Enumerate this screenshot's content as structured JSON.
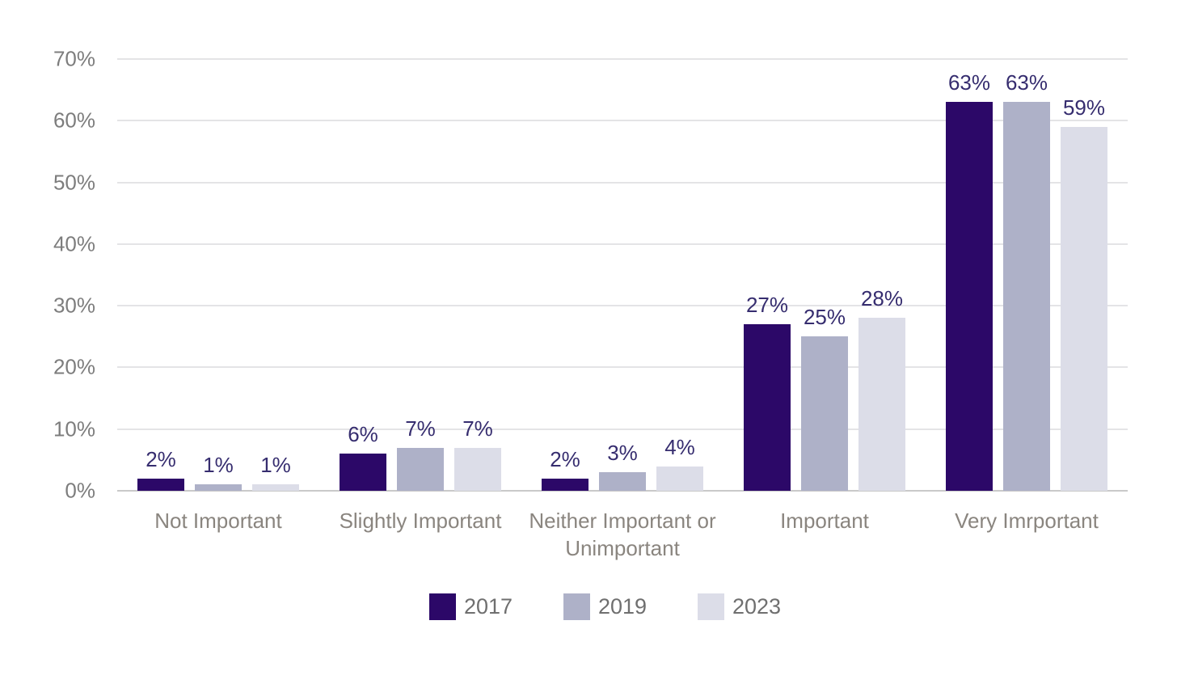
{
  "chart_data": {
    "type": "bar",
    "title": "",
    "xlabel": "",
    "ylabel": "",
    "categories": [
      "Not Important",
      "Slightly Important",
      "Neither Important or Unimportant",
      "Important",
      "Very Imrportant"
    ],
    "series": [
      {
        "name": "2017",
        "color": "#2c0868",
        "values": [
          2,
          6,
          2,
          27,
          63
        ]
      },
      {
        "name": "2019",
        "color": "#aeb1c8",
        "values": [
          1,
          7,
          3,
          25,
          63
        ]
      },
      {
        "name": "2023",
        "color": "#dcdde8",
        "values": [
          1,
          7,
          4,
          28,
          59
        ]
      }
    ],
    "value_labels": [
      [
        "2%",
        "6%",
        "2%",
        "27%",
        "63%"
      ],
      [
        "1%",
        "7%",
        "3%",
        "25%",
        "63%"
      ],
      [
        "1%",
        "7%",
        "4%",
        "28%",
        "59%"
      ]
    ],
    "yticks": [
      "0%",
      "10%",
      "20%",
      "30%",
      "40%",
      "50%",
      "60%",
      "70%"
    ],
    "ytick_values": [
      0,
      10,
      20,
      30,
      40,
      50,
      60,
      70
    ],
    "ylim": [
      0,
      70
    ],
    "grid": true,
    "legend_position": "bottom",
    "legend_entries": [
      "2017",
      "2019",
      "2023"
    ],
    "colors": {
      "gridline": "#e4e4e6",
      "axis_line": "#c9c9c9",
      "value_label": "#362d6f",
      "category_label": "#8a857f",
      "tick_label": "#7d7d7d",
      "background": "#ffffff"
    }
  }
}
